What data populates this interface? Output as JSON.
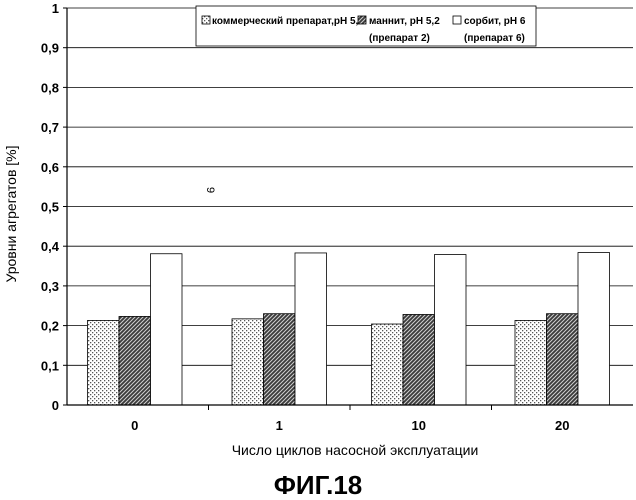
{
  "chart_data": {
    "type": "bar",
    "xlabel": "Число циклов насосной эксплуатации",
    "ylabel": "Уровни агрегатов [%]",
    "ylim": [
      0,
      1
    ],
    "yticks": [
      "0",
      "0,1",
      "0,2",
      "0,3",
      "0,4",
      "0,5",
      "0,6",
      "0,7",
      "0,8",
      "0,9",
      "1"
    ],
    "categories": [
      "0",
      "1",
      "10",
      "20"
    ],
    "series": [
      {
        "name": "коммерческий препарат,pH 5,2",
        "values": [
          0.213,
          0.217,
          0.204,
          0.213
        ],
        "pattern": "dots"
      },
      {
        "name": "маннит, pH 5,2",
        "name_line2": "(препарат 2)",
        "values": [
          0.223,
          0.23,
          0.228,
          0.23
        ],
        "pattern": "hatch"
      },
      {
        "name": "сорбит, pH 6",
        "name_line2": "(препарат 6)",
        "values": [
          0.381,
          0.383,
          0.379,
          0.384
        ],
        "pattern": "white"
      }
    ],
    "grid": true,
    "legend_position": "top-right"
  },
  "stray_mark": "9",
  "figure_label": "ФИГ.18"
}
